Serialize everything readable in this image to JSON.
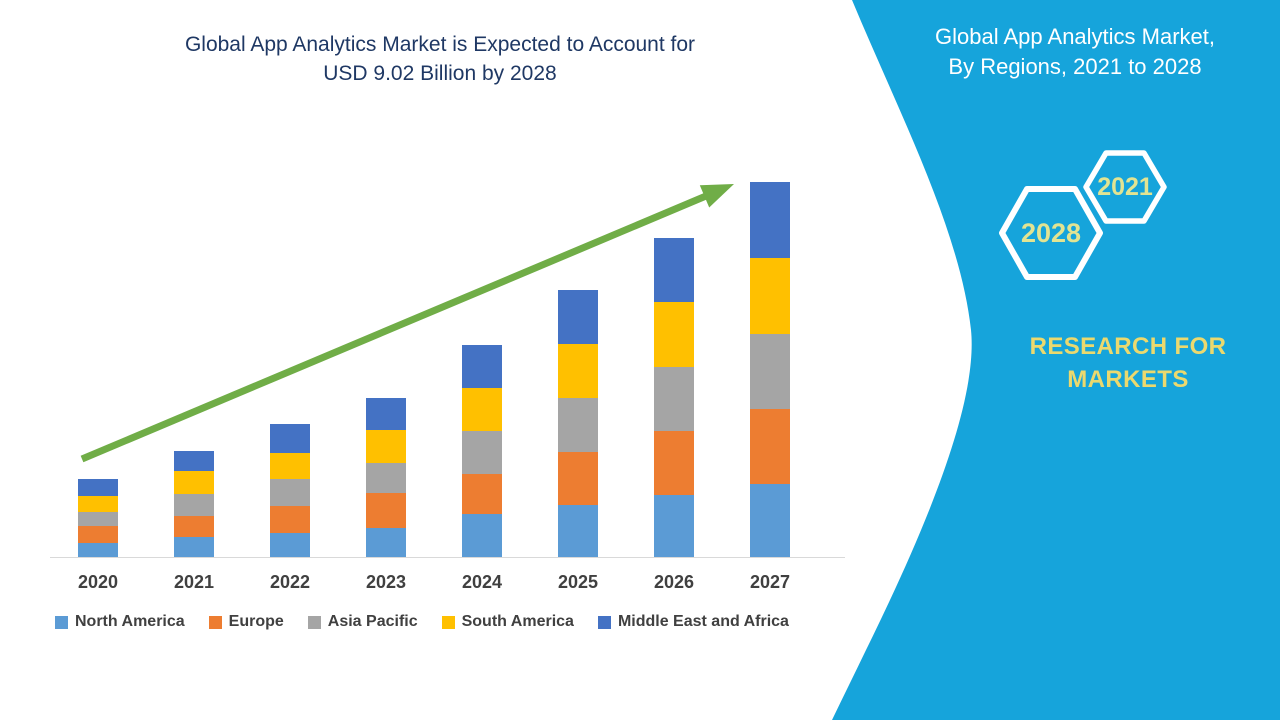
{
  "colors": {
    "panel": "#16A4DB",
    "heading": "#FFFFFF",
    "title": "#1F3864",
    "axis_text": "#404040",
    "axis_line": "#D9D9D9",
    "hex_year": "#E2E492",
    "brand": "#EBD96E",
    "arrow": "#70AD47"
  },
  "title": {
    "line1": "Global App Analytics Market is Expected to Account for",
    "line2": "USD 9.02 Billion by 2028"
  },
  "side_panel": {
    "heading_line1": "Global App Analytics Market,",
    "heading_line2": "By Regions, 2021 to 2028",
    "hexagon_years": [
      "2028",
      "2021"
    ],
    "brand_line1": "RESEARCH FOR",
    "brand_line2": "MARKETS"
  },
  "chart_data": {
    "type": "bar",
    "stacked": true,
    "title": "Global App Analytics Market is Expected to Account for USD 9.02 Billion by 2028",
    "xlabel": "",
    "ylabel": "",
    "units": "USD Billion",
    "categories": [
      "2020",
      "2021",
      "2022",
      "2023",
      "2024",
      "2025",
      "2026",
      "2027"
    ],
    "series": [
      {
        "name": "North America",
        "color": "#5B9BD5",
        "values": [
          0.32,
          0.45,
          0.53,
          0.64,
          0.94,
          1.13,
          1.34,
          1.57
        ]
      },
      {
        "name": "Europe",
        "color": "#ED7D31",
        "values": [
          0.36,
          0.45,
          0.57,
          0.74,
          0.85,
          1.13,
          1.36,
          1.6
        ]
      },
      {
        "name": "Asia Pacific",
        "color": "#A5A5A5",
        "values": [
          0.3,
          0.47,
          0.57,
          0.64,
          0.91,
          1.15,
          1.36,
          1.6
        ]
      },
      {
        "name": "South America",
        "color": "#FFC000",
        "values": [
          0.34,
          0.47,
          0.57,
          0.7,
          0.91,
          1.15,
          1.38,
          1.6
        ]
      },
      {
        "name": "Middle East and Africa",
        "color": "#4472C4",
        "values": [
          0.36,
          0.43,
          0.6,
          0.68,
          0.91,
          1.13,
          1.36,
          1.62
        ]
      }
    ],
    "totals": [
      1.68,
      2.27,
      2.84,
      3.4,
      4.52,
      5.69,
      6.8,
      7.99
    ],
    "ylim": [
      0,
      8.25
    ],
    "grid": false,
    "value_axis_visible": false,
    "legend_position": "bottom",
    "annotations": [
      "upward green trend arrow across bars"
    ]
  }
}
